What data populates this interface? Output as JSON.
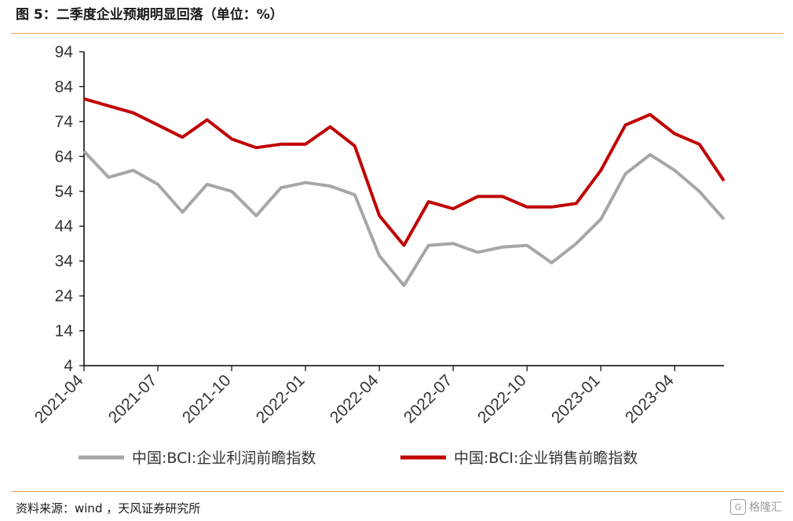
{
  "title": "图 5：二季度企业预期明显回落（单位：%）",
  "source": "资料来源：wind ，天风证券研究所",
  "watermark": "格隆汇",
  "watermark_icon": "gelonghui-logo-icon",
  "chart_data": {
    "type": "line",
    "title": "图 5：二季度企业预期明显回落（单位：%）",
    "xlabel": "",
    "ylabel": "",
    "ylim": [
      4,
      94
    ],
    "yticks": [
      94,
      84,
      74,
      64,
      54,
      44,
      34,
      24,
      14,
      4
    ],
    "x": [
      "2021-04",
      "2021-05",
      "2021-06",
      "2021-07",
      "2021-08",
      "2021-09",
      "2021-10",
      "2021-11",
      "2021-12",
      "2022-01",
      "2022-02",
      "2022-03",
      "2022-04",
      "2022-05",
      "2022-06",
      "2022-07",
      "2022-08",
      "2022-09",
      "2022-10",
      "2022-11",
      "2022-12",
      "2023-01",
      "2023-02",
      "2023-03",
      "2023-04",
      "2023-05",
      "2023-06"
    ],
    "xticks": [
      "2021-04",
      "2021-07",
      "2021-10",
      "2022-01",
      "2022-04",
      "2022-07",
      "2022-10",
      "2023-01",
      "2023-04"
    ],
    "grid": false,
    "legend_position": "bottom",
    "series": [
      {
        "name": "中国:BCI:企业利润前瞻指数",
        "color": "#a6a6a6",
        "values": [
          65.5,
          58,
          60,
          56,
          48,
          56,
          54,
          47,
          55,
          56.5,
          55.5,
          53,
          35.5,
          27,
          38.5,
          39,
          36.5,
          38,
          38.5,
          33.5,
          39,
          46,
          59,
          64.5,
          60,
          54,
          46
        ]
      },
      {
        "name": "中国:BCI:企业销售前瞻指数",
        "color": "#c00000",
        "values": [
          80.5,
          78.5,
          76.5,
          73,
          69.5,
          74.5,
          69,
          66.5,
          67.5,
          67.5,
          72.5,
          67,
          47,
          38.5,
          51,
          49,
          52.5,
          52.5,
          49.5,
          49.5,
          50.5,
          60,
          73,
          76,
          70.5,
          67.5,
          57
        ]
      }
    ]
  }
}
